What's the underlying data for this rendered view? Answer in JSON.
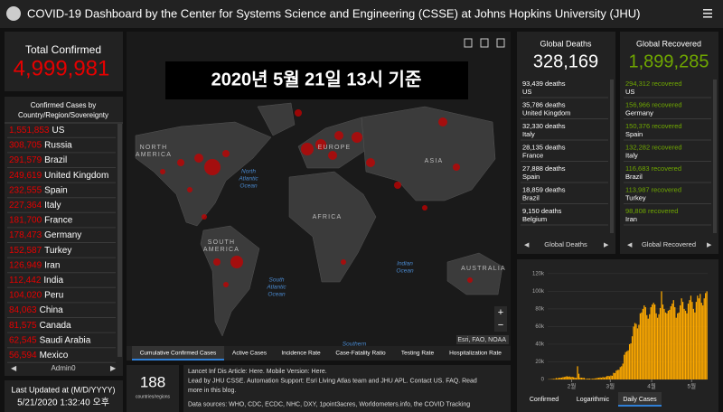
{
  "header": {
    "title": "COVID-19 Dashboard by the Center for Systems Science and Engineering (CSSE) at Johns Hopkins University (JHU)"
  },
  "total_confirmed": {
    "label": "Total Confirmed",
    "value": "4,999,981"
  },
  "country_list": {
    "title": [
      "Confirmed Cases by",
      "Country/Region/Sovereignty"
    ],
    "items": [
      {
        "count": "1,551,853",
        "name": "US"
      },
      {
        "count": "308,705",
        "name": "Russia"
      },
      {
        "count": "291,579",
        "name": "Brazil"
      },
      {
        "count": "249,619",
        "name": "United Kingdom"
      },
      {
        "count": "232,555",
        "name": "Spain"
      },
      {
        "count": "227,364",
        "name": "Italy"
      },
      {
        "count": "181,700",
        "name": "France"
      },
      {
        "count": "178,473",
        "name": "Germany"
      },
      {
        "count": "152,587",
        "name": "Turkey"
      },
      {
        "count": "126,949",
        "name": "Iran"
      },
      {
        "count": "112,442",
        "name": "India"
      },
      {
        "count": "104,020",
        "name": "Peru"
      },
      {
        "count": "84,063",
        "name": "China"
      },
      {
        "count": "81,575",
        "name": "Canada"
      },
      {
        "count": "62,545",
        "name": "Saudi Arabia"
      },
      {
        "count": "56,594",
        "name": "Mexico"
      }
    ],
    "footer": "Admin0"
  },
  "last_updated": {
    "label": "Last Updated at (M/D/YYYY)",
    "value": "5/21/2020 1:32:40 오후"
  },
  "map": {
    "overlay": "2020년 5월 21일 13시 기준",
    "labels": [
      [
        "NORTH",
        "AMERICA"
      ],
      [
        "EUROPE"
      ],
      [
        "ASIA"
      ],
      [
        "AFRICA"
      ],
      [
        "SOUTH",
        "AMERICA"
      ],
      [
        "AUSTRALIA"
      ]
    ],
    "ocean_labels": [
      [
        "North",
        "Atlantic",
        "Ocean"
      ],
      [
        "South",
        "Atlantic",
        "Ocean"
      ],
      [
        "Indian",
        "Ocean"
      ],
      [
        "Southern"
      ]
    ],
    "attribution": "Esri, FAO, NOAA",
    "tabs": [
      "Cumulative Confirmed Cases",
      "Active Cases",
      "Incidence Rate",
      "Case-Fatality Ratio",
      "Testing Rate",
      "Hospitalization Rate"
    ]
  },
  "countries_count": {
    "value": "188",
    "label": "countries/regions"
  },
  "info_lines": [
    "Lancet Inf Dis Article: Here. Mobile Version: Here.",
    "Lead by JHU CSSE. Automation Support: Esri Living Atlas team and JHU APL. Contact US. FAQ. Read",
    "more in this blog.",
    "Data sources: WHO, CDC, ECDC, NHC, DXY, 1point3acres, Worldometers.info, the COVID Tracking"
  ],
  "global_deaths": {
    "title": "Global Deaths",
    "value": "328,169",
    "items": [
      {
        "count": "93,439 deaths",
        "place": "US"
      },
      {
        "count": "35,786 deaths",
        "place": "United Kingdom"
      },
      {
        "count": "32,330 deaths",
        "place": "Italy"
      },
      {
        "count": "28,135 deaths",
        "place": "France"
      },
      {
        "count": "27,888 deaths",
        "place": "Spain"
      },
      {
        "count": "18,859 deaths",
        "place": "Brazil"
      },
      {
        "count": "9,150 deaths",
        "place": "Belgium"
      },
      {
        "count": "8,144 deaths",
        "place": ""
      }
    ],
    "footer": "Global Deaths"
  },
  "global_recovered": {
    "title": "Global Recovered",
    "value": "1,899,285",
    "items": [
      {
        "count": "294,312 recovered",
        "place": "US"
      },
      {
        "count": "156,966 recovered",
        "place": "Germany"
      },
      {
        "count": "150,376 recovered",
        "place": "Spain"
      },
      {
        "count": "132,282 recovered",
        "place": "Italy"
      },
      {
        "count": "116,683 recovered",
        "place": "Brazil"
      },
      {
        "count": "113,987 recovered",
        "place": "Turkey"
      },
      {
        "count": "98,808 recovered",
        "place": "Iran"
      },
      {
        "count": "85,392 recovered",
        "place": ""
      }
    ],
    "footer": "Global Recovered"
  },
  "chart_data": {
    "type": "bar",
    "color": "#ffaa00",
    "xtick_labels": [
      "2월",
      "3월",
      "4월",
      "5월"
    ],
    "values": [
      100,
      300,
      300,
      600,
      700,
      800,
      1700,
      1300,
      1900,
      2000,
      2100,
      2600,
      2800,
      3200,
      3700,
      3200,
      3400,
      2700,
      3000,
      2600,
      2100,
      1800,
      15000,
      6500,
      2100,
      2000,
      1900,
      1800,
      600,
      800,
      1000,
      1000,
      600,
      900,
      900,
      1200,
      1400,
      1800,
      2000,
      2300,
      2000,
      2800,
      2300,
      2800,
      3800,
      4100,
      3700,
      4500,
      4200,
      7500,
      7200,
      10000,
      10800,
      11000,
      14000,
      15000,
      18000,
      28000,
      31000,
      32000,
      33000,
      40000,
      41000,
      49000,
      60000,
      64000,
      63000,
      58000,
      62000,
      75000,
      76000,
      80000,
      84000,
      82000,
      73000,
      69000,
      74000,
      82000,
      85000,
      87000,
      85000,
      75000,
      70000,
      74000,
      81000,
      100000,
      85000,
      80000,
      76000,
      75000,
      78000,
      79000,
      83000,
      86000,
      90000,
      82000,
      70000,
      75000,
      76000,
      84000,
      92000,
      88000,
      80000,
      78000,
      75000,
      86000,
      90000,
      95000,
      88000,
      80000,
      76000,
      88000,
      95000,
      92000,
      97000,
      87000,
      84000,
      92000,
      98000,
      100000
    ],
    "ylim": [
      0,
      125000
    ],
    "yticks": [
      0,
      {
        "value": 20000,
        "label": "20k"
      },
      {
        "value": 40000,
        "label": "40k"
      },
      {
        "value": 60000,
        "label": "60k"
      },
      {
        "value": 80000,
        "label": "80k"
      },
      {
        "value": 100000,
        "label": "100k"
      },
      {
        "value": 120000,
        "label": "120k"
      }
    ],
    "grid": true,
    "tabs": [
      "Confirmed",
      "Logarithmic",
      "Daily Cases"
    ]
  }
}
